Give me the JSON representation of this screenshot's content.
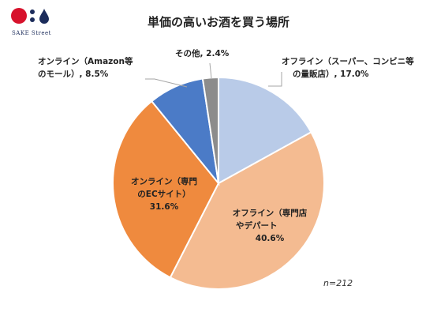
{
  "brand": {
    "logo_text": "SAKE Street",
    "colors": {
      "red": "#d7122c",
      "navy": "#1c2c5b"
    }
  },
  "chart_data": {
    "type": "pie",
    "title": "単価の高いお酒を買う場所",
    "note": "n=212",
    "slices": [
      {
        "label_lines": [
          "オフライン（スーパー、コンビニ等",
          "の量販店）, 17.0%"
        ],
        "value": 17.0,
        "color": "#b9cbe8"
      },
      {
        "label_lines": [
          "オフライン（専門店",
          "やデパート",
          "40.6%"
        ],
        "value": 40.6,
        "color": "#f4bb91"
      },
      {
        "label_lines": [
          "オンライン（専門",
          "のECサイト）",
          "31.6%"
        ],
        "value": 31.6,
        "color": "#ef8a3e"
      },
      {
        "label_lines": [
          "オンライン（Amazon等",
          "のモール）, 8.5%"
        ],
        "value": 8.5,
        "color": "#4b7bc7"
      },
      {
        "label_lines": [
          "その他, 2.4%"
        ],
        "value": 2.4,
        "color": "#8c8c8c"
      }
    ]
  }
}
